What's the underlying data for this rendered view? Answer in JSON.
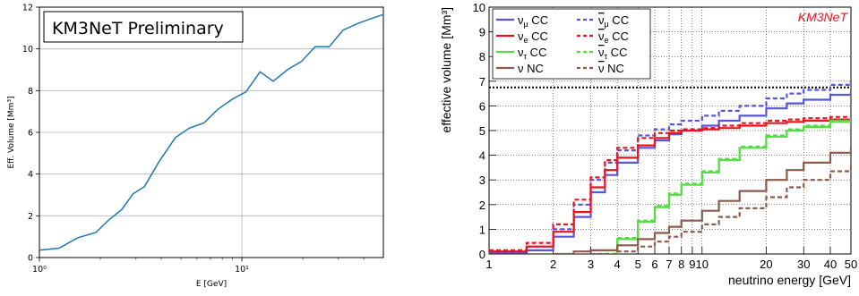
{
  "chart_data": [
    {
      "type": "line",
      "title": "",
      "annotation": "KM3NeT Preliminary",
      "xlabel": "E [GeV]",
      "ylabel": "Eff. Volume [Mm³]",
      "xscale": "log",
      "xlim": [
        1,
        50
      ],
      "ylim": [
        0,
        12
      ],
      "yticks": [
        0,
        2,
        4,
        6,
        8,
        10,
        12
      ],
      "yticklabels": [
        "0",
        "2",
        "4",
        "6",
        "8",
        "10",
        "12"
      ],
      "xticks": [
        1,
        10
      ],
      "xticklabels": [
        "10⁰",
        "10¹"
      ],
      "grid": true,
      "series": [
        {
          "color": "#1f77b4",
          "x": [
            1.0,
            1.25,
            1.55,
            1.9,
            2.2,
            2.55,
            2.9,
            3.3,
            3.9,
            4.7,
            5.5,
            6.5,
            7.6,
            9.0,
            10.5,
            12.3,
            14.3,
            16.8,
            19.7,
            23.0,
            27.0,
            31.6,
            37.0,
            43.5,
            50.0
          ],
          "y": [
            0.35,
            0.45,
            0.95,
            1.2,
            1.8,
            2.3,
            3.05,
            3.4,
            4.6,
            5.75,
            6.2,
            6.45,
            7.1,
            7.6,
            7.95,
            8.9,
            8.45,
            9.0,
            9.4,
            10.1,
            10.1,
            10.9,
            11.2,
            11.45,
            11.65
          ]
        }
      ]
    },
    {
      "type": "line",
      "title": "",
      "annotation": "KM3NeT",
      "xlabel": "neutrino energy [GeV]",
      "ylabel": "effective volume [Mm³]",
      "xscale": "log",
      "xlim": [
        1,
        50
      ],
      "ylim": [
        0,
        10
      ],
      "yticks": [
        0,
        1,
        2,
        3,
        4,
        5,
        6,
        7,
        8,
        9,
        10
      ],
      "yticklabels": [
        "0",
        "1",
        "2",
        "3",
        "4",
        "5",
        "6",
        "7",
        "8",
        "9",
        "10"
      ],
      "xticks": [
        1,
        2,
        3,
        4,
        5,
        6,
        7,
        8,
        9,
        10,
        20,
        30,
        40,
        50
      ],
      "xticklabels": [
        "1",
        "2",
        "3",
        "4",
        "5",
        "6",
        "7",
        "8",
        "9",
        "10",
        "20",
        "30",
        "40",
        "50"
      ],
      "grid": true,
      "reference_line_y": 6.75,
      "legend_position": "top-left",
      "series": [
        {
          "name": "νμ CC",
          "label_base": "ν",
          "label_sub": "μ",
          "label_rest": " CC",
          "bar": false,
          "color": "#5555dd",
          "dashed": false,
          "x": [
            1,
            1.5,
            2,
            2.5,
            3,
            3.5,
            4,
            5,
            6,
            7,
            8,
            10,
            12,
            15,
            20,
            25,
            30,
            40,
            50
          ],
          "y": [
            0.05,
            0.15,
            0.7,
            1.5,
            2.5,
            3.2,
            3.7,
            4.3,
            4.6,
            4.85,
            5.0,
            5.2,
            5.4,
            5.6,
            5.9,
            6.1,
            6.25,
            6.45,
            6.6
          ]
        },
        {
          "name": "ν̄μ CC",
          "label_base": "ν",
          "label_sub": "μ",
          "label_rest": " CC",
          "bar": true,
          "color": "#5555dd",
          "dashed": true,
          "x": [
            1,
            1.5,
            2,
            2.5,
            3,
            3.5,
            4,
            5,
            6,
            7,
            8,
            10,
            12,
            15,
            20,
            25,
            30,
            40,
            50
          ],
          "y": [
            0.1,
            0.3,
            1.0,
            2.0,
            3.0,
            3.7,
            4.2,
            4.8,
            5.05,
            5.25,
            5.4,
            5.6,
            5.8,
            6.0,
            6.3,
            6.5,
            6.65,
            6.85,
            7.0
          ]
        },
        {
          "name": "νe CC",
          "label_base": "ν",
          "label_sub": "e",
          "label_rest": " CC",
          "bar": false,
          "color": "#e8141e",
          "dashed": false,
          "x": [
            1,
            1.5,
            2,
            2.5,
            3,
            3.5,
            4,
            5,
            6,
            7,
            8,
            10,
            12,
            15,
            20,
            25,
            30,
            40,
            50
          ],
          "y": [
            0.1,
            0.3,
            0.9,
            1.7,
            2.7,
            3.4,
            3.9,
            4.4,
            4.7,
            4.9,
            5.0,
            5.05,
            5.1,
            5.2,
            5.3,
            5.35,
            5.4,
            5.45,
            5.5
          ]
        },
        {
          "name": "ν̄e CC",
          "label_base": "ν",
          "label_sub": "e",
          "label_rest": " CC",
          "bar": true,
          "color": "#e8141e",
          "dashed": true,
          "x": [
            1,
            1.5,
            2,
            2.5,
            3,
            3.5,
            4,
            5,
            6,
            7,
            8,
            10,
            12,
            15,
            20,
            25,
            30,
            40,
            50
          ],
          "y": [
            0.15,
            0.45,
            1.2,
            2.2,
            3.1,
            3.8,
            4.3,
            4.7,
            4.9,
            5.0,
            5.05,
            5.1,
            5.2,
            5.3,
            5.4,
            5.45,
            5.5,
            5.55,
            5.6
          ]
        },
        {
          "name": "ντ CC",
          "label_base": "ν",
          "label_sub": "τ",
          "label_rest": " CC",
          "bar": false,
          "color": "#55dd44",
          "dashed": false,
          "x": [
            3.5,
            4,
            5,
            6,
            7,
            8,
            10,
            12,
            15,
            20,
            25,
            30,
            40,
            50
          ],
          "y": [
            0.0,
            0.6,
            1.3,
            1.9,
            2.4,
            2.8,
            3.3,
            3.8,
            4.3,
            4.75,
            5.0,
            5.15,
            5.35,
            5.5
          ]
        },
        {
          "name": "ν̄τ CC",
          "label_base": "ν",
          "label_sub": "τ",
          "label_rest": " CC",
          "bar": true,
          "color": "#55dd44",
          "dashed": true,
          "x": [
            3.5,
            4,
            5,
            6,
            7,
            8,
            10,
            12,
            15,
            20,
            25,
            30,
            40,
            50
          ],
          "y": [
            0.0,
            0.65,
            1.35,
            1.95,
            2.45,
            2.85,
            3.35,
            3.85,
            4.35,
            4.8,
            5.05,
            5.2,
            5.4,
            5.55
          ]
        },
        {
          "name": "ν NC",
          "label_base": "ν",
          "label_sub": "",
          "label_rest": " NC",
          "bar": false,
          "color": "#8b5a4a",
          "dashed": false,
          "x": [
            2,
            2.5,
            3,
            4,
            5,
            6,
            7,
            8,
            10,
            12,
            15,
            20,
            25,
            30,
            40,
            50
          ],
          "y": [
            0.0,
            0.1,
            0.15,
            0.35,
            0.6,
            0.85,
            1.1,
            1.35,
            1.75,
            2.15,
            2.55,
            3.0,
            3.4,
            3.7,
            4.1,
            4.3
          ]
        },
        {
          "name": "ν̄ NC",
          "label_base": "ν",
          "label_sub": "",
          "label_rest": " NC",
          "bar": true,
          "color": "#8b5a4a",
          "dashed": true,
          "x": [
            3,
            4,
            5,
            6,
            7,
            8,
            10,
            12,
            15,
            20,
            25,
            30,
            40,
            50
          ],
          "y": [
            0.0,
            0.1,
            0.3,
            0.5,
            0.7,
            0.9,
            1.2,
            1.5,
            1.85,
            2.3,
            2.7,
            3.0,
            3.35,
            3.65
          ]
        }
      ]
    }
  ]
}
